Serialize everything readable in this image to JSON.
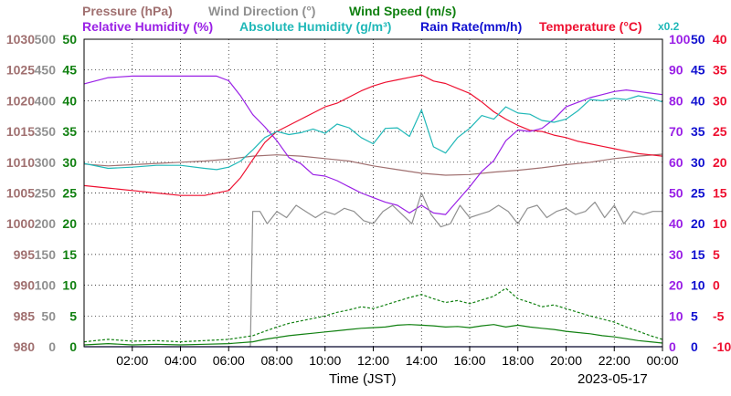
{
  "chart_data": {
    "type": "line",
    "title_lines": [
      [
        {
          "text": "Pressure (hPa)",
          "color": "#a07070"
        },
        {
          "text": "Wind Direction (°)",
          "color": "#909090"
        },
        {
          "text": "Wind Speed (m/s)",
          "color": "#108010"
        }
      ],
      [
        {
          "text": "Relative Humidity (%)",
          "color": "#9a20e6"
        },
        {
          "text": "Absolute Humidity (g/m³)",
          "color": "#20b8b8"
        },
        {
          "text": "Rain Rate(mm/h)",
          "color": "#1010d0"
        },
        {
          "text": "Temperature (°C)",
          "color": "#ee1030"
        }
      ]
    ],
    "rain_scale_note": "x0.2",
    "xlabel": "Time (JST)",
    "date": "2023-05-17",
    "x_range_hours": [
      0,
      24
    ],
    "x_ticks": [
      {
        "h": 2,
        "label": "02:00"
      },
      {
        "h": 4,
        "label": "04:00"
      },
      {
        "h": 6,
        "label": "06:00"
      },
      {
        "h": 8,
        "label": "08:00"
      },
      {
        "h": 10,
        "label": "10:00"
      },
      {
        "h": 12,
        "label": "12:00"
      },
      {
        "h": 14,
        "label": "14:00"
      },
      {
        "h": 16,
        "label": "16:00"
      },
      {
        "h": 18,
        "label": "18:00"
      },
      {
        "h": 20,
        "label": "20:00"
      },
      {
        "h": 22,
        "label": "22:00"
      },
      {
        "h": 24,
        "label": "00:00"
      }
    ],
    "y_axes": [
      {
        "name": "Pressure",
        "unit": "hPa",
        "color": "#a07070",
        "side": "left",
        "order": 0,
        "range": [
          980,
          1030
        ],
        "ticks": [
          "980",
          "985",
          "990",
          "995",
          "1000",
          "1005",
          "1010",
          "1015",
          "1020",
          "1025",
          "1030"
        ]
      },
      {
        "name": "Wind Direction",
        "unit": "°",
        "color": "#909090",
        "side": "left",
        "order": 1,
        "range": [
          0,
          500
        ],
        "ticks": [
          "0",
          "50",
          "100",
          "150",
          "200",
          "250",
          "300",
          "350",
          "400",
          "450",
          "500"
        ]
      },
      {
        "name": "Wind Speed",
        "unit": "m/s",
        "color": "#108010",
        "side": "left",
        "order": 2,
        "range": [
          0,
          50
        ],
        "ticks": [
          "0",
          "5",
          "10",
          "15",
          "20",
          "25",
          "30",
          "35",
          "40",
          "45",
          "50"
        ]
      },
      {
        "name": "Relative Humidity",
        "unit": "%",
        "color": "#9a20e6",
        "side": "right",
        "order": 0,
        "range": [
          0,
          100
        ],
        "ticks": [
          "0",
          "10",
          "20",
          "30",
          "40",
          "50",
          "60",
          "70",
          "80",
          "90",
          "100"
        ]
      },
      {
        "name": "Absolute Humidity / Rain Rate",
        "unit": "g/m³ | mm/h",
        "color": "#1010d0",
        "side": "right",
        "order": 1,
        "range": [
          0,
          50
        ],
        "ticks": [
          "0",
          "5",
          "10",
          "15",
          "20",
          "25",
          "30",
          "35",
          "40",
          "45",
          "50"
        ]
      },
      {
        "name": "Temperature",
        "unit": "°C",
        "color": "#ee1030",
        "side": "right",
        "order": 2,
        "range": [
          -10,
          40
        ],
        "ticks": [
          "-10",
          "-5",
          "0",
          "5",
          "10",
          "15",
          "20",
          "25",
          "30",
          "35",
          "40"
        ]
      }
    ],
    "series": [
      {
        "name": "Pressure",
        "axis": 0,
        "color": "#a07070",
        "style": "solid",
        "x": [
          0,
          1,
          2,
          3,
          4,
          5,
          6,
          7,
          8,
          9,
          10,
          11,
          12,
          13,
          14,
          15,
          16,
          17,
          18,
          19,
          20,
          21,
          22,
          23,
          24
        ],
        "y": [
          1009.7,
          1009.4,
          1009.6,
          1009.8,
          1010.0,
          1010.2,
          1010.5,
          1011.0,
          1011.2,
          1011.0,
          1010.6,
          1010.2,
          1009.4,
          1008.8,
          1008.2,
          1007.9,
          1008.0,
          1008.4,
          1008.7,
          1009.1,
          1009.6,
          1010.0,
          1010.6,
          1011.0,
          1011.3
        ]
      },
      {
        "name": "Temperature",
        "axis": 5,
        "color": "#ee1030",
        "style": "solid",
        "x": [
          0,
          1,
          2,
          3,
          4,
          5,
          6,
          6.5,
          7,
          7.5,
          8,
          8.5,
          9,
          9.5,
          10,
          10.5,
          11,
          11.5,
          12,
          12.5,
          13,
          13.5,
          14,
          14.5,
          15,
          15.5,
          16,
          16.5,
          17,
          17.5,
          18,
          18.5,
          19,
          19.5,
          20,
          20.5,
          21,
          21.5,
          22,
          22.5,
          23,
          23.5,
          24
        ],
        "y": [
          16.2,
          15.8,
          15.4,
          15.0,
          14.6,
          14.6,
          15.4,
          17.5,
          20.4,
          23.2,
          25.0,
          26.0,
          27.0,
          28.0,
          29.0,
          29.6,
          30.6,
          31.6,
          32.4,
          33.0,
          33.4,
          33.8,
          34.2,
          33.2,
          32.8,
          32.0,
          31.2,
          29.8,
          28.2,
          27.0,
          26.0,
          25.2,
          25.0,
          24.4,
          24.0,
          23.4,
          23.0,
          22.6,
          22.2,
          21.8,
          21.4,
          21.2,
          21.0
        ]
      },
      {
        "name": "Relative Humidity",
        "axis": 3,
        "color": "#9a20e6",
        "style": "solid",
        "x": [
          0,
          1,
          2,
          3,
          4,
          5,
          5.5,
          6,
          6.5,
          7,
          7.5,
          8,
          8.5,
          9,
          9.5,
          10,
          10.5,
          11,
          11.5,
          12,
          12.5,
          13,
          13.5,
          14,
          14.5,
          15,
          15.5,
          16,
          16.5,
          17,
          17.5,
          18,
          18.5,
          19,
          19.5,
          20,
          20.5,
          21,
          21.5,
          22,
          22.5,
          23,
          23.5,
          24
        ],
        "y": [
          85.5,
          87.5,
          88,
          88,
          88,
          88,
          88,
          86.5,
          81.5,
          75.5,
          71.5,
          67.0,
          61.5,
          59.5,
          56.0,
          55.5,
          54.0,
          52.0,
          50.0,
          48.5,
          47.0,
          46.0,
          43.5,
          46.0,
          43.5,
          43.0,
          47.5,
          52.0,
          57.0,
          60.5,
          67.0,
          70.5,
          70.0,
          71.0,
          74.0,
          78.0,
          79.5,
          81.0,
          82.0,
          83.0,
          83.5,
          83.0,
          82.5,
          82.0
        ]
      },
      {
        "name": "Absolute Humidity",
        "axis": 4,
        "color": "#20b8b8",
        "style": "solid",
        "x": [
          0,
          1,
          2,
          3,
          4,
          5,
          5.5,
          6,
          6.5,
          7,
          7.5,
          8,
          8.5,
          9,
          9.5,
          10,
          10.5,
          11,
          11.5,
          12,
          12.5,
          13,
          13.5,
          14,
          14.5,
          15,
          15.5,
          16,
          16.5,
          17,
          17.5,
          18,
          18.5,
          19,
          19.5,
          20,
          20.5,
          21,
          21.5,
          22,
          22.5,
          23,
          23.5,
          24
        ],
        "y": [
          29.8,
          29.0,
          29.2,
          29.5,
          29.5,
          29.0,
          28.8,
          29.2,
          30.2,
          32.0,
          34.0,
          35.0,
          34.5,
          34.8,
          35.4,
          34.7,
          36.2,
          35.6,
          34.0,
          33.0,
          35.5,
          35.6,
          34.2,
          38.5,
          32.5,
          31.5,
          34.0,
          35.5,
          37.6,
          37.0,
          39.0,
          38.0,
          37.8,
          36.8,
          36.5,
          37.0,
          38.4,
          40.2,
          40.0,
          40.4,
          40.2,
          40.8,
          40.4,
          39.8
        ]
      },
      {
        "name": "Wind Direction",
        "axis": 1,
        "color": "#909090",
        "style": "solid",
        "x": [
          6.8,
          6.9,
          7.0,
          7.3,
          7.6,
          8.0,
          8.4,
          8.8,
          9.2,
          9.6,
          10.0,
          10.4,
          10.8,
          11.2,
          11.6,
          12.0,
          12.4,
          12.8,
          13.2,
          13.6,
          14.0,
          14.4,
          14.8,
          15.2,
          15.6,
          16.0,
          16.4,
          16.8,
          17.2,
          17.6,
          18.0,
          18.4,
          18.8,
          19.2,
          19.6,
          20.0,
          20.4,
          20.8,
          21.2,
          21.6,
          22.0,
          22.4,
          22.8,
          23.2,
          23.6,
          24.0
        ],
        "y": [
          0,
          0,
          220,
          220,
          200,
          220,
          210,
          230,
          220,
          210,
          220,
          215,
          225,
          220,
          205,
          200,
          220,
          230,
          215,
          200,
          250,
          215,
          195,
          200,
          230,
          210,
          215,
          220,
          230,
          220,
          200,
          225,
          230,
          210,
          220,
          225,
          215,
          220,
          235,
          210,
          230,
          200,
          220,
          215,
          220,
          220
        ]
      },
      {
        "name": "Wind Speed (mean)",
        "axis": 2,
        "color": "#108010",
        "style": "solid",
        "x": [
          0,
          1,
          2,
          3,
          4,
          5,
          6,
          7,
          7.5,
          8,
          8.5,
          9,
          9.5,
          10,
          10.5,
          11,
          11.5,
          12,
          12.5,
          13,
          13.5,
          14,
          14.5,
          15,
          15.5,
          16,
          16.5,
          17,
          17.5,
          18,
          18.5,
          19,
          19.5,
          20,
          20.5,
          21,
          21.5,
          22,
          22.5,
          23,
          23.5,
          24
        ],
        "y": [
          0.3,
          0.5,
          0.3,
          0.4,
          0.3,
          0.4,
          0.5,
          0.8,
          1.2,
          1.5,
          1.8,
          2.0,
          2.2,
          2.4,
          2.6,
          2.8,
          3.0,
          3.1,
          3.2,
          3.5,
          3.6,
          3.5,
          3.4,
          3.2,
          3.3,
          3.1,
          3.4,
          3.6,
          3.2,
          3.5,
          3.2,
          3.0,
          2.8,
          2.5,
          2.3,
          2.1,
          1.8,
          1.6,
          1.3,
          1.0,
          0.8,
          0.6
        ]
      },
      {
        "name": "Wind Speed (gust)",
        "axis": 2,
        "color": "#108010",
        "style": "dashed",
        "x": [
          0,
          1,
          2,
          3,
          4,
          5,
          6,
          7,
          7.5,
          8,
          8.5,
          9,
          9.5,
          10,
          10.5,
          11,
          11.5,
          12,
          12.5,
          13,
          13.5,
          14,
          14.5,
          15,
          15.5,
          16,
          16.5,
          17,
          17.5,
          18,
          18.5,
          19,
          19.5,
          20,
          20.5,
          21,
          21.5,
          22,
          22.5,
          23,
          23.5,
          24
        ],
        "y": [
          0.8,
          1.2,
          0.9,
          1.0,
          0.8,
          1.0,
          1.2,
          1.8,
          2.5,
          3.2,
          3.8,
          4.2,
          4.6,
          5.0,
          5.6,
          6.0,
          6.5,
          6.2,
          6.8,
          7.4,
          8.0,
          8.5,
          7.8,
          7.2,
          7.5,
          7.0,
          7.6,
          8.2,
          9.5,
          7.8,
          7.2,
          6.5,
          6.8,
          6.2,
          5.6,
          5.0,
          4.5,
          4.0,
          3.2,
          2.5,
          1.8,
          1.2
        ]
      },
      {
        "name": "Rain Rate",
        "axis": 4,
        "color": "#1010d0",
        "style": "solid",
        "x": [
          0,
          24
        ],
        "y": [
          0,
          0
        ]
      }
    ]
  }
}
